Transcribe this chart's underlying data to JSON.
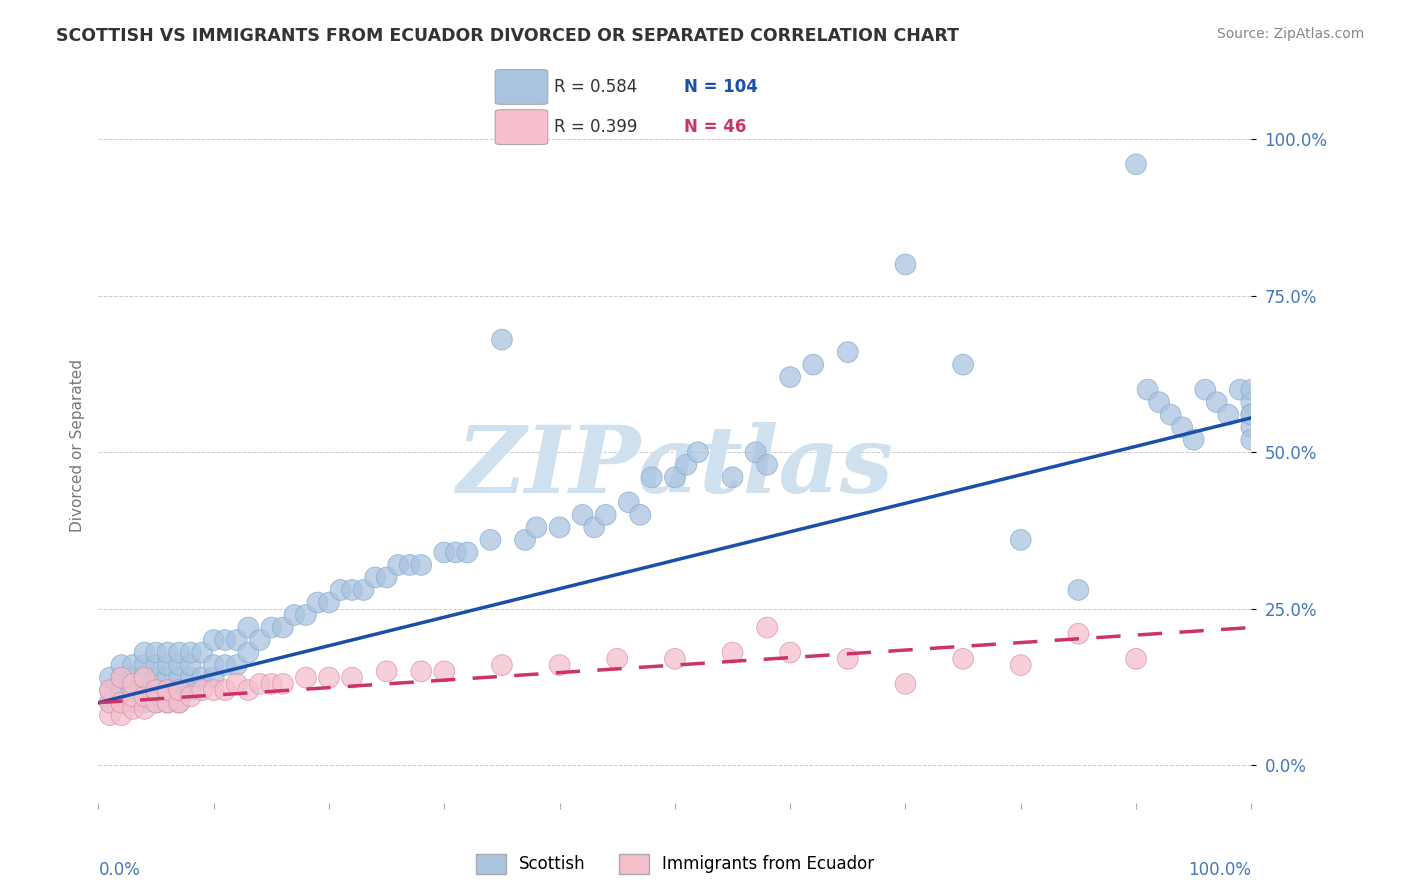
{
  "title": "SCOTTISH VS IMMIGRANTS FROM ECUADOR DIVORCED OR SEPARATED CORRELATION CHART",
  "source": "Source: ZipAtlas.com",
  "ylabel": "Divorced or Separated",
  "xlim": [
    0,
    1
  ],
  "ylim": [
    -0.06,
    1.08
  ],
  "yticks": [
    0.0,
    0.25,
    0.5,
    0.75,
    1.0
  ],
  "ytick_labels": [
    "0.0%",
    "25.0%",
    "50.0%",
    "75.0%",
    "100.0%"
  ],
  "blue_R": 0.584,
  "blue_N": 104,
  "pink_R": 0.399,
  "pink_N": 46,
  "background_color": "#ffffff",
  "watermark_color": "#cfe0ee",
  "blue_scatter_color": "#aac4df",
  "blue_scatter_edge": "#7aaacf",
  "blue_line_color": "#1a4faa",
  "pink_scatter_color": "#f5bfcc",
  "pink_scatter_edge": "#dd88a8",
  "pink_line_color": "#cc3366",
  "grid_color": "#aaaaaa",
  "title_color": "#333333",
  "axis_label_color": "#4477bb",
  "blue_line_x0": 0.0,
  "blue_line_y0": 0.1,
  "blue_line_x1": 1.0,
  "blue_line_y1": 0.555,
  "pink_line_x0": 0.0,
  "pink_line_y0": 0.1,
  "pink_line_x1": 1.0,
  "pink_line_y1": 0.22,
  "blue_scatter_x": [
    0.01,
    0.01,
    0.01,
    0.02,
    0.02,
    0.02,
    0.02,
    0.03,
    0.03,
    0.03,
    0.03,
    0.04,
    0.04,
    0.04,
    0.04,
    0.04,
    0.05,
    0.05,
    0.05,
    0.05,
    0.05,
    0.06,
    0.06,
    0.06,
    0.06,
    0.06,
    0.07,
    0.07,
    0.07,
    0.07,
    0.07,
    0.08,
    0.08,
    0.08,
    0.08,
    0.09,
    0.09,
    0.1,
    0.1,
    0.1,
    0.11,
    0.11,
    0.12,
    0.12,
    0.13,
    0.13,
    0.14,
    0.15,
    0.16,
    0.17,
    0.18,
    0.19,
    0.2,
    0.21,
    0.22,
    0.23,
    0.24,
    0.25,
    0.26,
    0.27,
    0.28,
    0.3,
    0.31,
    0.32,
    0.34,
    0.35,
    0.37,
    0.38,
    0.4,
    0.42,
    0.43,
    0.44,
    0.46,
    0.47,
    0.48,
    0.5,
    0.51,
    0.52,
    0.55,
    0.57,
    0.58,
    0.6,
    0.62,
    0.65,
    0.7,
    0.75,
    0.8,
    0.85,
    0.9,
    0.91,
    0.92,
    0.93,
    0.94,
    0.95,
    0.96,
    0.97,
    0.98,
    0.99,
    1.0,
    1.0,
    1.0,
    1.0,
    1.0,
    1.0
  ],
  "blue_scatter_y": [
    0.1,
    0.12,
    0.14,
    0.1,
    0.12,
    0.14,
    0.16,
    0.1,
    0.12,
    0.14,
    0.16,
    0.1,
    0.12,
    0.14,
    0.16,
    0.18,
    0.1,
    0.12,
    0.14,
    0.16,
    0.18,
    0.1,
    0.12,
    0.14,
    0.16,
    0.18,
    0.1,
    0.12,
    0.14,
    0.16,
    0.18,
    0.12,
    0.14,
    0.16,
    0.18,
    0.14,
    0.18,
    0.14,
    0.16,
    0.2,
    0.16,
    0.2,
    0.16,
    0.2,
    0.18,
    0.22,
    0.2,
    0.22,
    0.22,
    0.24,
    0.24,
    0.26,
    0.26,
    0.28,
    0.28,
    0.28,
    0.3,
    0.3,
    0.32,
    0.32,
    0.32,
    0.34,
    0.34,
    0.34,
    0.36,
    0.68,
    0.36,
    0.38,
    0.38,
    0.4,
    0.38,
    0.4,
    0.42,
    0.4,
    0.46,
    0.46,
    0.48,
    0.5,
    0.46,
    0.5,
    0.48,
    0.62,
    0.64,
    0.66,
    0.8,
    0.64,
    0.36,
    0.28,
    0.96,
    0.6,
    0.58,
    0.56,
    0.54,
    0.52,
    0.6,
    0.58,
    0.56,
    0.6,
    0.58,
    0.56,
    0.54,
    0.52,
    0.56,
    0.6
  ],
  "pink_scatter_x": [
    0.01,
    0.01,
    0.01,
    0.02,
    0.02,
    0.02,
    0.03,
    0.03,
    0.03,
    0.04,
    0.04,
    0.04,
    0.05,
    0.05,
    0.06,
    0.06,
    0.07,
    0.07,
    0.08,
    0.09,
    0.1,
    0.11,
    0.12,
    0.13,
    0.14,
    0.15,
    0.16,
    0.18,
    0.2,
    0.22,
    0.25,
    0.28,
    0.3,
    0.35,
    0.4,
    0.45,
    0.5,
    0.55,
    0.58,
    0.6,
    0.65,
    0.7,
    0.75,
    0.8,
    0.85,
    0.9
  ],
  "pink_scatter_y": [
    0.08,
    0.1,
    0.12,
    0.08,
    0.1,
    0.14,
    0.09,
    0.11,
    0.13,
    0.09,
    0.11,
    0.14,
    0.1,
    0.12,
    0.1,
    0.12,
    0.1,
    0.12,
    0.11,
    0.12,
    0.12,
    0.12,
    0.13,
    0.12,
    0.13,
    0.13,
    0.13,
    0.14,
    0.14,
    0.14,
    0.15,
    0.15,
    0.15,
    0.16,
    0.16,
    0.17,
    0.17,
    0.18,
    0.22,
    0.18,
    0.17,
    0.13,
    0.17,
    0.16,
    0.21,
    0.17
  ]
}
